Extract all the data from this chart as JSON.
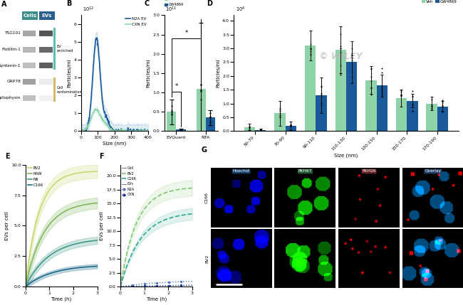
{
  "panel_A": {
    "proteins": [
      "TSG101",
      "Flotillin-1",
      "Syntenin-1",
      "GRP78",
      "Synaptophysin"
    ],
    "cells_color": "#3a8f8a",
    "evs_color": "#2a5e8e",
    "bar_ev_color": "#5bbfb0",
    "bar_cell_color": "#d4b86a"
  },
  "panel_B": {
    "xlabel": "Size (nm)",
    "ylabel": "Particles/ml",
    "yexp": "10^{12}",
    "legend_cxn": "CXN EV",
    "legend_n2a": "N2A EV",
    "cxn_color": "#8ed4a8",
    "n2a_color": "#1a5a9a",
    "cxn_shade": "#c0ecd8",
    "n2a_shade": "#8ab8d8"
  },
  "panel_C": {
    "ylabel": "Particles/ml",
    "yexp": "10^{11}",
    "categories": [
      "EVQuant",
      "NTA"
    ],
    "veh_color": "#8ed4a8",
    "gw_color": "#1a5a9a",
    "veh_label": "Veh",
    "gw_label": "GW4869",
    "veh_evquant": 0.5,
    "gw_evquant": 0.04,
    "veh_nta": 1.1,
    "gw_nta": 0.35,
    "veh_evquant_err": 0.32,
    "gw_evquant_err": 0.03,
    "veh_nta_err": 1.7,
    "gw_nta_err": 0.2
  },
  "panel_D": {
    "xlabel": "Size (nm)",
    "ylabel": "Particles/ml",
    "yexp": "10^{4}",
    "categories": [
      "50-70",
      "70-90",
      "90-110",
      "110-130",
      "130-150",
      "150-170",
      "170-190"
    ],
    "veh_color": "#8ed4a8",
    "gw_color": "#1a5a9a",
    "veh_label": "Veh",
    "gw_label": "GW4869",
    "veh_vals": [
      0.15,
      0.65,
      3.1,
      2.95,
      1.85,
      1.2,
      1.0
    ],
    "gw_vals": [
      0.05,
      0.2,
      1.3,
      2.5,
      1.65,
      1.1,
      0.9
    ],
    "veh_err": [
      0.12,
      0.45,
      0.55,
      0.85,
      0.5,
      0.3,
      0.25
    ],
    "gw_err": [
      0.04,
      0.15,
      0.65,
      0.75,
      0.4,
      0.25,
      0.2
    ]
  },
  "panel_E": {
    "xlabel": "Time (h)",
    "ylabel": "EVs per cell",
    "ylim": [
      0,
      10.0
    ],
    "yticks": [
      0,
      2.5,
      5.0,
      7.5,
      10.0
    ],
    "bv2_color": "#c8d870",
    "raw_color": "#80b860",
    "n9_color": "#409888",
    "c166_color": "#1a6888"
  },
  "panel_F": {
    "xlabel": "Time (h)",
    "ylabel": "EVs per cell",
    "cell_bv2_color": "#80c870",
    "cell_c166_color": "#30a890",
    "ev_n2a_color": "#5878c0",
    "ev_cxn_color": "#1838a0"
  },
  "panel_G": {
    "labels": [
      "Hoechst",
      "PKH67",
      "PKH26",
      "Overlay"
    ],
    "rows": [
      "C166",
      "BV2"
    ],
    "label_colors": [
      "#1a4a7a",
      "#2a6a3a",
      "#7a2a2a",
      "#2a4a7a"
    ]
  }
}
